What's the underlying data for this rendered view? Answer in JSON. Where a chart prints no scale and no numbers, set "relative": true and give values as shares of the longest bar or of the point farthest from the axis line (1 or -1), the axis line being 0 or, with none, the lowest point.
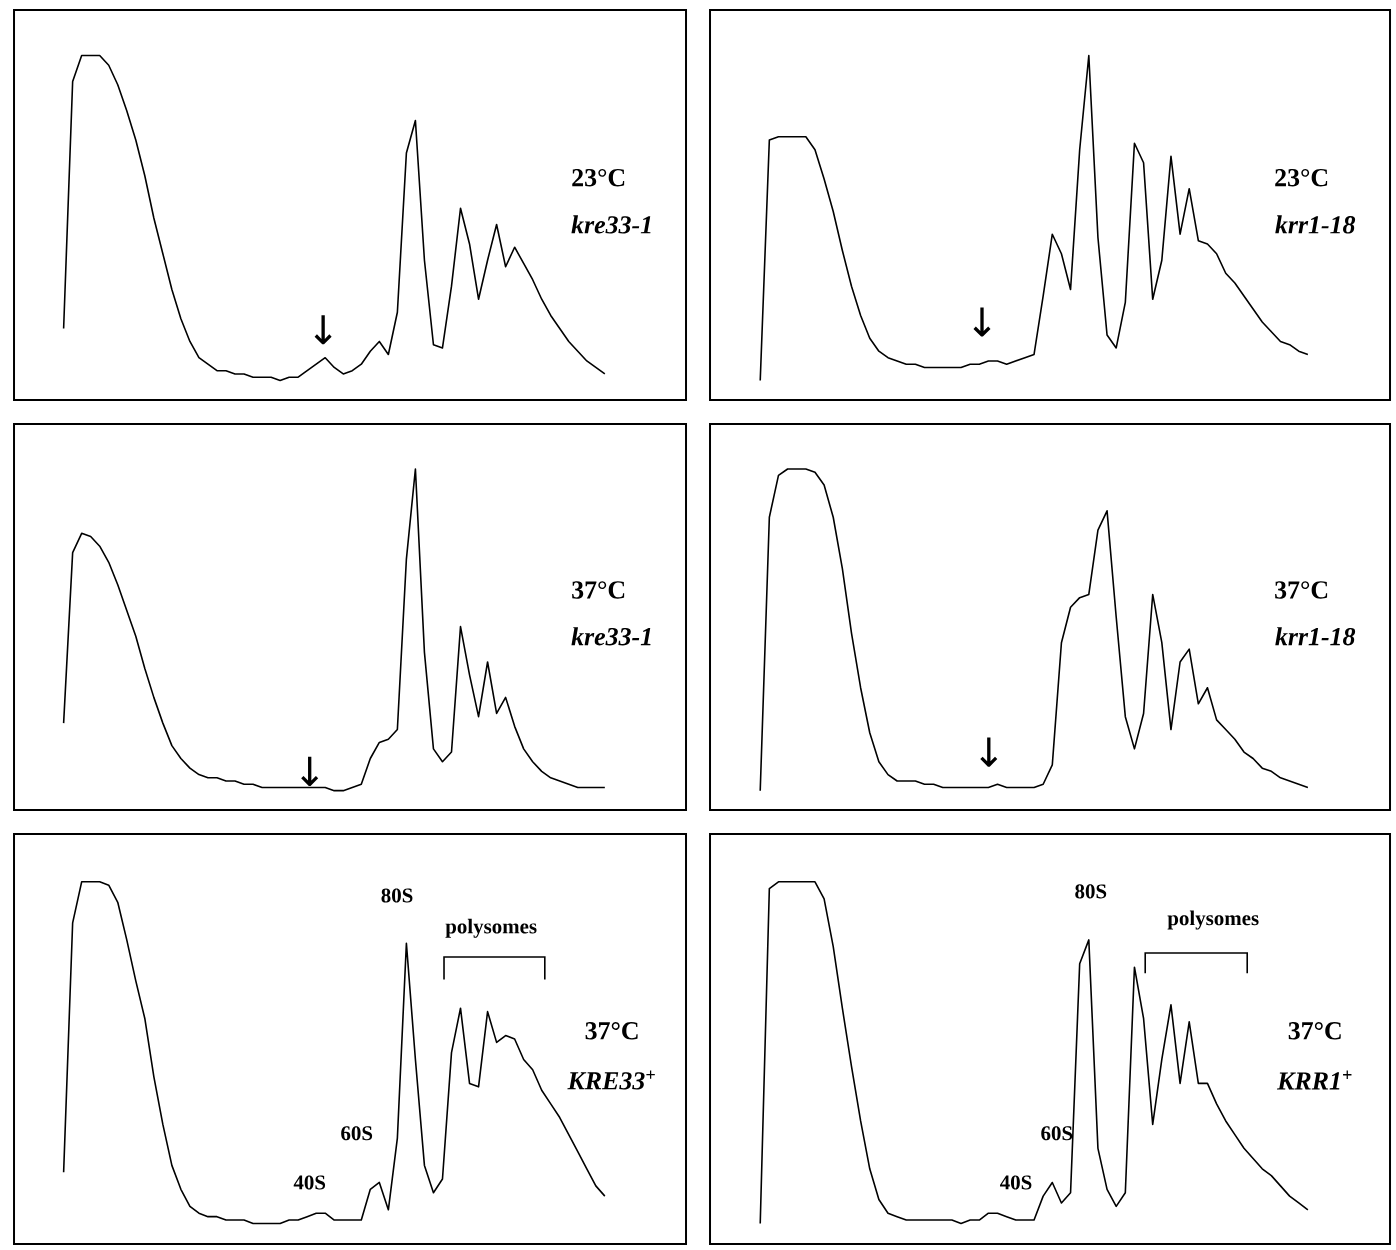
{
  "chart_data": [
    {
      "type": "line",
      "relative": true,
      "color": "#000000",
      "title": "23°C",
      "subtitle": "kre33-1",
      "annotations": [
        "↓"
      ],
      "categories": [
        null,
        null,
        null,
        null,
        null,
        null,
        null,
        null,
        null,
        null,
        null,
        null,
        null,
        null,
        null,
        null,
        null,
        null,
        null,
        null,
        null,
        null,
        null,
        null,
        null,
        null,
        null,
        null,
        null,
        null,
        null,
        null,
        null,
        null,
        null,
        null,
        null,
        null,
        null,
        null,
        null,
        null,
        null,
        null,
        null,
        null,
        null,
        null,
        null,
        null,
        null,
        null,
        null,
        null,
        null,
        null,
        null,
        null,
        null,
        null,
        null
      ],
      "values": [
        0.16,
        0.92,
        1.0,
        1.0,
        1.0,
        0.97,
        0.91,
        0.83,
        0.74,
        0.63,
        0.5,
        0.39,
        0.28,
        0.19,
        0.12,
        0.07,
        0.05,
        0.03,
        0.03,
        0.02,
        0.02,
        0.01,
        0.01,
        0.01,
        0,
        0.01,
        0.01,
        0.03,
        0.05,
        0.07,
        0.04,
        0.02,
        0.03,
        0.05,
        0.09,
        0.12,
        0.08,
        0.21,
        0.7,
        0.8,
        0.37,
        0.11,
        0.1,
        0.29,
        0.53,
        0.42,
        0.25,
        0.37,
        0.48,
        0.35,
        0.41,
        0.36,
        0.31,
        0.25,
        0.2,
        0.16,
        0.12,
        0.09,
        0.06,
        0.04,
        0.02
      ]
    },
    {
      "type": "line",
      "relative": true,
      "color": "#000000",
      "title": "23°C",
      "subtitle": "krr1-18",
      "annotations": [
        "↓"
      ],
      "categories": [
        null,
        null,
        null,
        null,
        null,
        null,
        null,
        null,
        null,
        null,
        null,
        null,
        null,
        null,
        null,
        null,
        null,
        null,
        null,
        null,
        null,
        null,
        null,
        null,
        null,
        null,
        null,
        null,
        null,
        null,
        null,
        null,
        null,
        null,
        null,
        null,
        null,
        null,
        null,
        null,
        null,
        null,
        null,
        null,
        null,
        null,
        null,
        null,
        null,
        null,
        null,
        null,
        null,
        null,
        null,
        null,
        null,
        null,
        null,
        null,
        null
      ],
      "values": [
        0,
        0.74,
        0.75,
        0.75,
        0.75,
        0.75,
        0.71,
        0.62,
        0.52,
        0.4,
        0.29,
        0.2,
        0.13,
        0.09,
        0.07,
        0.06,
        0.05,
        0.05,
        0.04,
        0.04,
        0.04,
        0.04,
        0.04,
        0.05,
        0.05,
        0.06,
        0.06,
        0.05,
        0.06,
        0.07,
        0.08,
        0.26,
        0.45,
        0.39,
        0.28,
        0.71,
        1.0,
        0.44,
        0.14,
        0.1,
        0.24,
        0.73,
        0.67,
        0.25,
        0.37,
        0.69,
        0.45,
        0.59,
        0.43,
        0.42,
        0.39,
        0.33,
        0.3,
        0.26,
        0.22,
        0.18,
        0.15,
        0.12,
        0.11,
        0.09,
        0.08
      ]
    },
    {
      "type": "line",
      "relative": true,
      "color": "#000000",
      "title": "37°C",
      "subtitle": "kre33-1",
      "annotations": [
        "↓"
      ],
      "categories": [
        null,
        null,
        null,
        null,
        null,
        null,
        null,
        null,
        null,
        null,
        null,
        null,
        null,
        null,
        null,
        null,
        null,
        null,
        null,
        null,
        null,
        null,
        null,
        null,
        null,
        null,
        null,
        null,
        null,
        null,
        null,
        null,
        null,
        null,
        null,
        null,
        null,
        null,
        null,
        null,
        null,
        null,
        null,
        null,
        null,
        null,
        null,
        null,
        null,
        null,
        null,
        null,
        null,
        null,
        null,
        null,
        null,
        null,
        null,
        null,
        null
      ],
      "values": [
        0.21,
        0.74,
        0.8,
        0.79,
        0.76,
        0.71,
        0.64,
        0.56,
        0.48,
        0.38,
        0.29,
        0.21,
        0.14,
        0.1,
        0.07,
        0.05,
        0.04,
        0.04,
        0.03,
        0.03,
        0.02,
        0.02,
        0.01,
        0.01,
        0.01,
        0.01,
        0.01,
        0.01,
        0.01,
        0.01,
        0,
        0,
        0.01,
        0.02,
        0.1,
        0.15,
        0.16,
        0.19,
        0.72,
        1.0,
        0.43,
        0.13,
        0.09,
        0.12,
        0.51,
        0.36,
        0.23,
        0.4,
        0.24,
        0.29,
        0.2,
        0.13,
        0.09,
        0.06,
        0.04,
        0.03,
        0.02,
        0.01,
        0.01,
        0.01,
        0.01
      ]
    },
    {
      "type": "line",
      "relative": true,
      "color": "#000000",
      "title": "37°C",
      "subtitle": "krr1-18",
      "annotations": [
        "↓"
      ],
      "categories": [
        null,
        null,
        null,
        null,
        null,
        null,
        null,
        null,
        null,
        null,
        null,
        null,
        null,
        null,
        null,
        null,
        null,
        null,
        null,
        null,
        null,
        null,
        null,
        null,
        null,
        null,
        null,
        null,
        null,
        null,
        null,
        null,
        null,
        null,
        null,
        null,
        null,
        null,
        null,
        null,
        null,
        null,
        null,
        null,
        null,
        null,
        null,
        null,
        null,
        null,
        null,
        null,
        null,
        null,
        null,
        null,
        null,
        null,
        null,
        null,
        null
      ],
      "values": [
        0,
        0.85,
        0.98,
        1.0,
        1.0,
        1.0,
        0.99,
        0.95,
        0.85,
        0.69,
        0.49,
        0.32,
        0.18,
        0.09,
        0.05,
        0.03,
        0.03,
        0.03,
        0.02,
        0.02,
        0.01,
        0.01,
        0.01,
        0.01,
        0.01,
        0.01,
        0.02,
        0.01,
        0.01,
        0.01,
        0.01,
        0.02,
        0.08,
        0.46,
        0.57,
        0.6,
        0.61,
        0.81,
        0.87,
        0.54,
        0.23,
        0.13,
        0.24,
        0.61,
        0.46,
        0.19,
        0.4,
        0.44,
        0.27,
        0.32,
        0.22,
        0.19,
        0.16,
        0.12,
        0.1,
        0.07,
        0.06,
        0.04,
        0.03,
        0.02,
        0.01
      ]
    },
    {
      "type": "line",
      "relative": true,
      "color": "#000000",
      "title": "37°C",
      "subtitle": "KRE33$^{+}$",
      "annotations": [
        "80S",
        "polysomes",
        "60S",
        "40S"
      ],
      "categories": [
        null,
        null,
        null,
        null,
        null,
        null,
        null,
        null,
        null,
        null,
        null,
        null,
        null,
        null,
        null,
        null,
        null,
        null,
        null,
        null,
        null,
        null,
        null,
        null,
        null,
        null,
        null,
        null,
        null,
        null,
        null,
        null,
        null,
        null,
        null,
        null,
        null,
        null,
        null,
        null,
        null,
        null,
        null,
        null,
        null,
        null,
        null,
        null,
        null,
        null,
        null,
        null,
        null,
        null,
        null,
        null,
        null,
        null,
        null,
        null,
        null
      ],
      "values": [
        0.15,
        0.88,
        1.0,
        1.0,
        1.0,
        0.99,
        0.94,
        0.83,
        0.71,
        0.6,
        0.43,
        0.29,
        0.17,
        0.1,
        0.05,
        0.03,
        0.02,
        0.02,
        0.01,
        0.01,
        0.01,
        0,
        0,
        0,
        0,
        0.01,
        0.01,
        0.02,
        0.03,
        0.03,
        0.01,
        0.01,
        0.01,
        0.01,
        0.1,
        0.12,
        0.04,
        0.25,
        0.82,
        0.48,
        0.17,
        0.09,
        0.13,
        0.5,
        0.63,
        0.41,
        0.4,
        0.62,
        0.53,
        0.55,
        0.54,
        0.48,
        0.45,
        0.39,
        0.35,
        0.31,
        0.26,
        0.21,
        0.16,
        0.11,
        0.08
      ]
    },
    {
      "type": "line",
      "relative": true,
      "color": "#000000",
      "title": "37°C",
      "subtitle": "KRR1$^{+}$",
      "annotations": [
        "80S",
        "polysomes",
        "60S",
        "40S"
      ],
      "categories": [
        null,
        null,
        null,
        null,
        null,
        null,
        null,
        null,
        null,
        null,
        null,
        null,
        null,
        null,
        null,
        null,
        null,
        null,
        null,
        null,
        null,
        null,
        null,
        null,
        null,
        null,
        null,
        null,
        null,
        null,
        null,
        null,
        null,
        null,
        null,
        null,
        null,
        null,
        null,
        null,
        null,
        null,
        null,
        null,
        null,
        null,
        null,
        null,
        null,
        null,
        null,
        null,
        null,
        null,
        null,
        null,
        null,
        null,
        null,
        null,
        null
      ],
      "values": [
        0,
        0.98,
        1.0,
        1.0,
        1.0,
        1.0,
        1.0,
        0.95,
        0.81,
        0.63,
        0.46,
        0.3,
        0.16,
        0.07,
        0.03,
        0.02,
        0.01,
        0.01,
        0.01,
        0.01,
        0.01,
        0.01,
        0,
        0.01,
        0.01,
        0.03,
        0.03,
        0.02,
        0.01,
        0.01,
        0.01,
        0.08,
        0.12,
        0.06,
        0.09,
        0.76,
        0.83,
        0.22,
        0.1,
        0.05,
        0.09,
        0.75,
        0.6,
        0.29,
        0.48,
        0.64,
        0.41,
        0.59,
        0.41,
        0.41,
        0.35,
        0.3,
        0.26,
        0.22,
        0.19,
        0.16,
        0.14,
        0.11,
        0.08,
        0.06,
        0.04
      ]
    }
  ]
}
